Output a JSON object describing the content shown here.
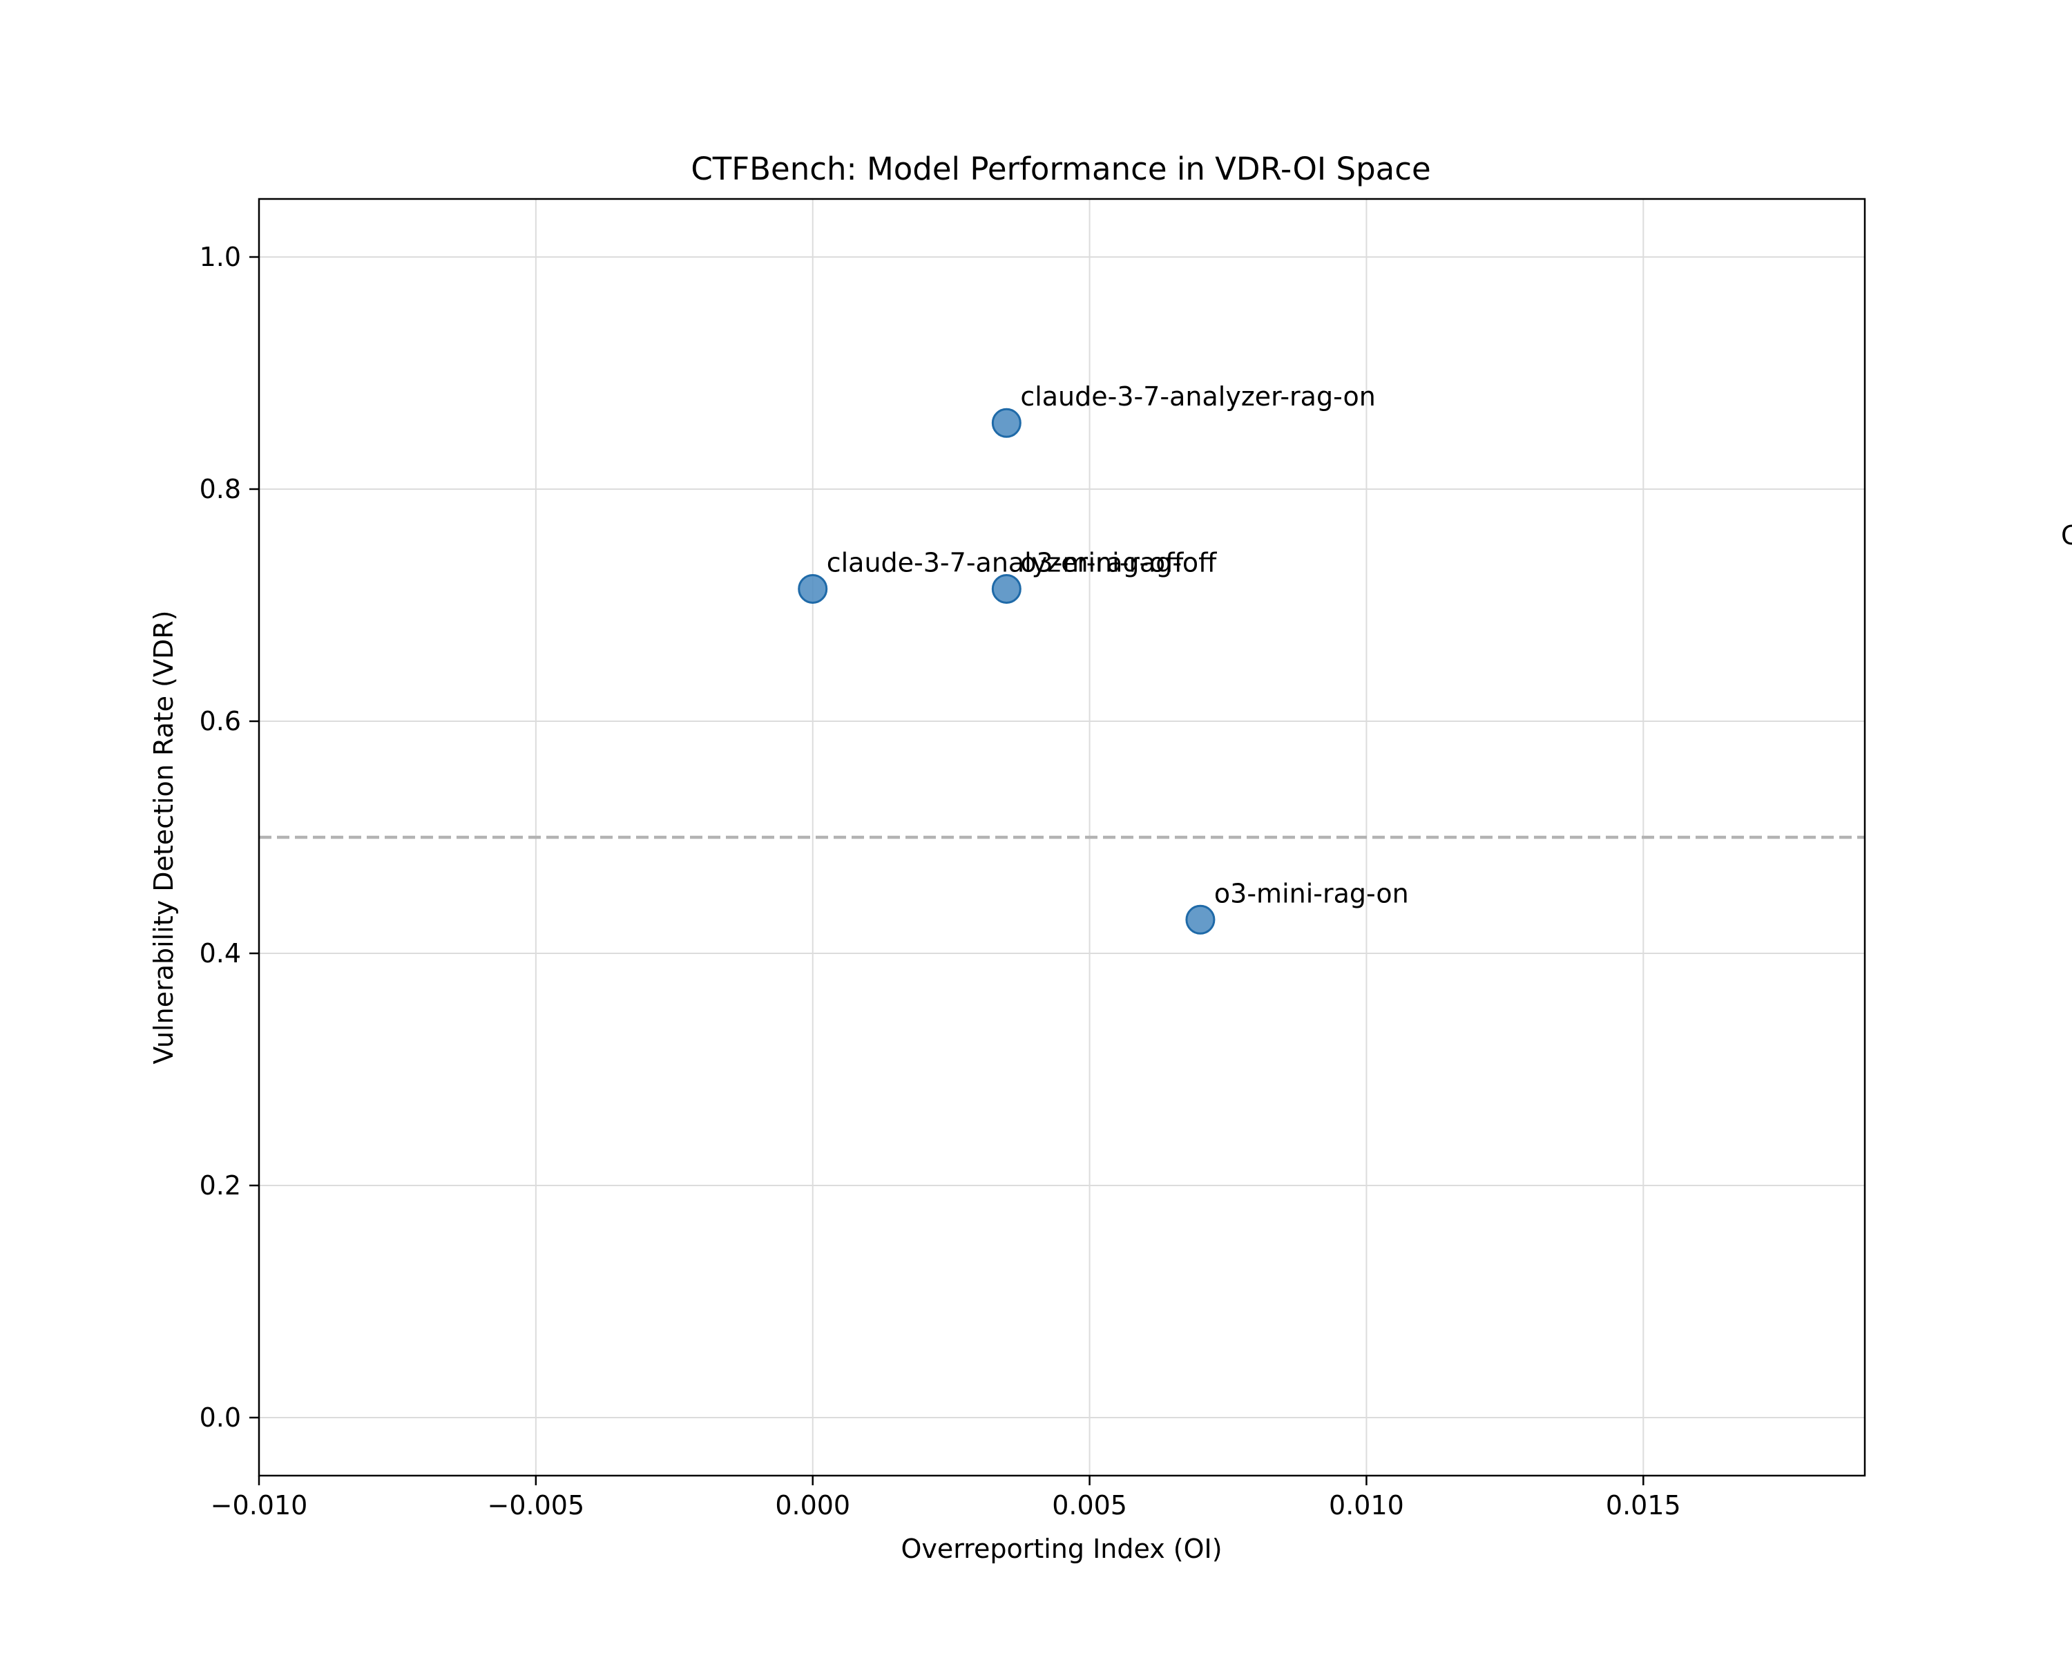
{
  "chart_data": {
    "type": "scatter",
    "title": "CTFBench: Model Performance in VDR-OI Space",
    "xlabel": "Overreporting Index (OI)",
    "ylabel": "Vulnerability Detection Rate (VDR)",
    "xlim": [
      -0.01,
      0.019
    ],
    "ylim": [
      -0.05,
      1.05
    ],
    "xticks": [
      -0.01,
      -0.005,
      0.0,
      0.005,
      0.01,
      0.015
    ],
    "xtick_labels": [
      "−0.010",
      "−0.005",
      "0.000",
      "0.005",
      "0.010",
      "0.015"
    ],
    "yticks": [
      0.0,
      0.2,
      0.4,
      0.6,
      0.8,
      1.0
    ],
    "ytick_labels": [
      "0.0",
      "0.2",
      "0.4",
      "0.6",
      "0.8",
      "1.0"
    ],
    "grid": true,
    "reference_line": {
      "orientation": "horizontal",
      "y": 0.5,
      "style": "dashed",
      "color": "#b3b3b3"
    },
    "marker_color": "#4a8ac0",
    "points": [
      {
        "label": "claude-3-7-analyzer-rag-on",
        "x": 0.0035,
        "y": 0.857
      },
      {
        "label": "claude-3-7-analyzer-rag-off",
        "x": 0.0,
        "y": 0.714
      },
      {
        "label": "o3-mini-rag-off",
        "x": 0.0035,
        "y": 0.714
      },
      {
        "label": "o3-mini-rag-on",
        "x": 0.007,
        "y": 0.429
      }
    ],
    "clipped_annotation": "C"
  }
}
